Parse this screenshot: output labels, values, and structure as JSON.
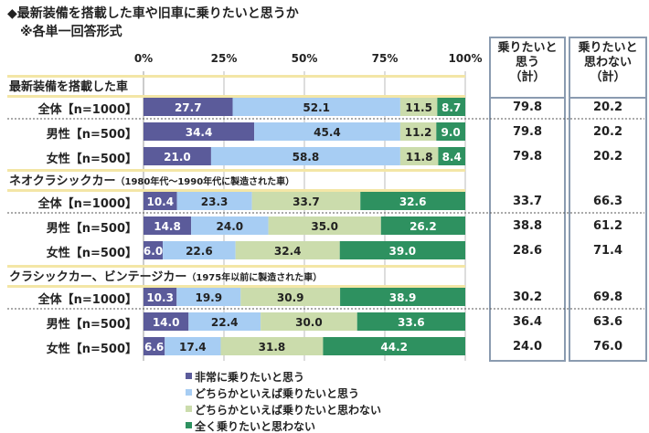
{
  "chart_data": {
    "type": "bar",
    "orientation": "horizontal-stacked-100",
    "title": "◆最新装備を搭載した車や旧車に乗りたいと思うか",
    "subtitle": "※各単一回答形式",
    "xticks": [
      "0%",
      "25%",
      "50%",
      "75%",
      "100%"
    ],
    "xlim": [
      0,
      100
    ],
    "legend": [
      "非常に乗りたいと思う",
      "どちらかといえば乗りたいと思う",
      "どちらかといえば乗りたいと思わない",
      "全く乗りたいと思わない"
    ],
    "legend_placement": "bottom",
    "colors": [
      "#5b5b9a",
      "#a7cdf3",
      "#cbdcac",
      "#2e9160"
    ],
    "table_headers": [
      "乗りたいと\n思う\n（計）",
      "乗りたいと\n思わない\n（計）"
    ],
    "groups": [
      {
        "title": "最新装備を搭載した車",
        "note": "",
        "rows": [
          {
            "label": "全体【n=1000】",
            "values": [
              27.7,
              52.1,
              11.5,
              8.7
            ],
            "want": "79.8",
            "not_want": "20.2"
          },
          {
            "label": "男性【n=500】",
            "values": [
              34.4,
              45.4,
              11.2,
              9.0
            ],
            "want": "79.8",
            "not_want": "20.2"
          },
          {
            "label": "女性【n=500】",
            "values": [
              21.0,
              58.8,
              11.8,
              8.4
            ],
            "want": "79.8",
            "not_want": "20.2"
          }
        ]
      },
      {
        "title": "ネオクラシックカー",
        "note": "（1980年代～1990年代に製造された車）",
        "rows": [
          {
            "label": "全体【n=1000】",
            "values": [
              10.4,
              23.3,
              33.7,
              32.6
            ],
            "want": "33.7",
            "not_want": "66.3"
          },
          {
            "label": "男性【n=500】",
            "values": [
              14.8,
              24.0,
              35.0,
              26.2
            ],
            "want": "38.8",
            "not_want": "61.2"
          },
          {
            "label": "女性【n=500】",
            "values": [
              6.0,
              22.6,
              32.4,
              39.0
            ],
            "want": "28.6",
            "not_want": "71.4"
          }
        ]
      },
      {
        "title": "クラシックカー、ビンテージカー",
        "note": "（1975年以前に製造された車）",
        "rows": [
          {
            "label": "全体【n=1000】",
            "values": [
              10.3,
              19.9,
              30.9,
              38.9
            ],
            "want": "30.2",
            "not_want": "69.8"
          },
          {
            "label": "男性【n=500】",
            "values": [
              14.0,
              22.4,
              30.0,
              33.6
            ],
            "want": "36.4",
            "not_want": "63.6"
          },
          {
            "label": "女性【n=500】",
            "values": [
              6.6,
              17.4,
              31.8,
              44.2
            ],
            "want": "24.0",
            "not_want": "76.0"
          }
        ]
      }
    ]
  }
}
